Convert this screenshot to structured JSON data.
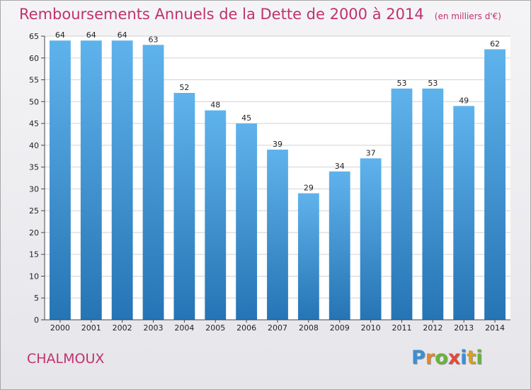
{
  "header": {
    "title": "Remboursements Annuels de la Dette de 2000 à 2014",
    "subtitle": "(en milliers d'€)"
  },
  "footer": {
    "place_name": "CHALMOUX",
    "logo_letters": [
      "P",
      "r",
      "o",
      "x",
      "i",
      "t",
      "i"
    ],
    "logo_colors": [
      "#3b8fd6",
      "#e8862a",
      "#6ab33a",
      "#e24a3a",
      "#3b8fd6",
      "#d8a020",
      "#6ab33a"
    ]
  },
  "colors": {
    "title": "#c0316f",
    "bar_top": "#5fb3ec",
    "bar_bottom": "#2674b4",
    "grid": "#d2d2d2"
  },
  "chart_data": {
    "type": "bar",
    "title": "Remboursements Annuels de la Dette de 2000 à 2014",
    "categories": [
      "2000",
      "2001",
      "2002",
      "2003",
      "2004",
      "2005",
      "2006",
      "2007",
      "2008",
      "2009",
      "2010",
      "2011",
      "2012",
      "2013",
      "2014"
    ],
    "values": [
      64,
      64,
      64,
      63,
      52,
      48,
      45,
      39,
      29,
      34,
      37,
      53,
      53,
      49,
      62
    ],
    "data_labels": [
      "64",
      "64",
      "64",
      "63",
      "52",
      "48",
      "45",
      "39",
      "29",
      "34",
      "37",
      "53",
      "53",
      "49",
      "62"
    ],
    "yticks": [
      "0",
      "5",
      "10",
      "15",
      "20",
      "25",
      "30",
      "35",
      "40",
      "45",
      "50",
      "55",
      "60",
      "65"
    ],
    "ylim": [
      0,
      65
    ],
    "ystep": 5,
    "grid": true,
    "xlabel": "",
    "ylabel": ""
  }
}
